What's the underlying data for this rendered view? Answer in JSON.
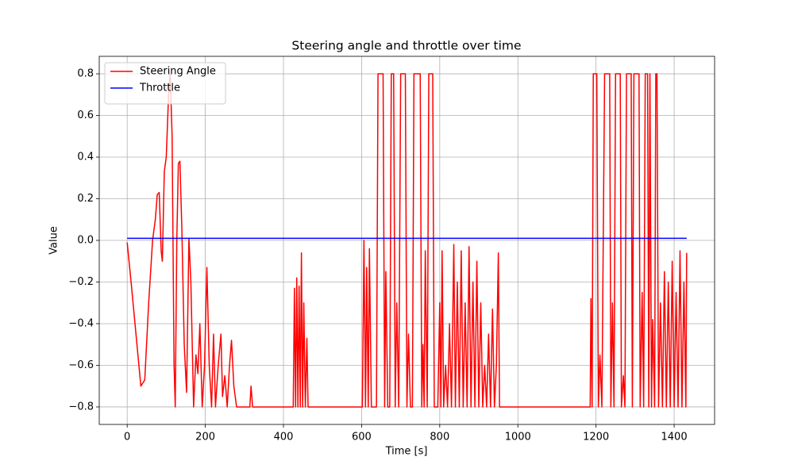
{
  "chart_data": {
    "type": "line",
    "title": "Steering angle and throttle over time",
    "xlabel": "Time [s]",
    "ylabel": "Value",
    "xlim": [
      -71.5,
      1503.5
    ],
    "ylim": [
      -0.884,
      0.884
    ],
    "xticks": [
      0,
      200,
      400,
      600,
      800,
      1000,
      1200,
      1400
    ],
    "yticks": [
      {
        "value": -0.8,
        "label": "−0.8"
      },
      {
        "value": -0.6,
        "label": "−0.6"
      },
      {
        "value": -0.4,
        "label": "−0.4"
      },
      {
        "value": -0.2,
        "label": "−0.2"
      },
      {
        "value": 0,
        "label": "0.0"
      },
      0.2,
      0.4,
      0.6,
      0.8
    ],
    "grid": true,
    "legend": "upper-left",
    "series": [
      {
        "name": "Steering Angle",
        "color": "#ff0000",
        "x": [
          0,
          10,
          20,
          30,
          35,
          45,
          55,
          65,
          72,
          77,
          82,
          87,
          90,
          95,
          100,
          106,
          110,
          115,
          120,
          123,
          127,
          131,
          135,
          140,
          146,
          152,
          158,
          163,
          170,
          176,
          181,
          186,
          192,
          198,
          204,
          210,
          216,
          221,
          226,
          233,
          240,
          244,
          250,
          256,
          262,
          267,
          273,
          280,
          314,
          317,
          321,
          425,
          428,
          431,
          434,
          437,
          440,
          443,
          446,
          449,
          452,
          456,
          460,
          463,
          602,
          606,
          610,
          613,
          617,
          620,
          625,
          638,
          642,
          655,
          659,
          662,
          667,
          672,
          676,
          682,
          686,
          690,
          695,
          700,
          712,
          716,
          720,
          725,
          730,
          734,
          750,
          754,
          757,
          760,
          763,
          768,
          772,
          782,
          786,
          795,
          800,
          803,
          806,
          810,
          815,
          820,
          825,
          830,
          836,
          840,
          845,
          850,
          855,
          860,
          865,
          870,
          875,
          880,
          885,
          890,
          895,
          900,
          905,
          910,
          915,
          920,
          925,
          930,
          935,
          940,
          945,
          950,
          953,
          1185,
          1187,
          1190,
          1193,
          1202,
          1206,
          1210,
          1215,
          1222,
          1235,
          1238,
          1242,
          1246,
          1250,
          1262,
          1265,
          1270,
          1274,
          1278,
          1290,
          1293,
          1297,
          1310,
          1313,
          1318,
          1322,
          1326,
          1332,
          1335,
          1338,
          1342,
          1345,
          1350,
          1353,
          1356,
          1360,
          1365,
          1370,
          1375,
          1380,
          1385,
          1390,
          1395,
          1400,
          1405,
          1410,
          1415,
          1420,
          1425,
          1430,
          1432
        ],
        "values": [
          -0.01,
          -0.2,
          -0.4,
          -0.6,
          -0.7,
          -0.67,
          -0.3,
          0,
          0.1,
          0.22,
          0.23,
          -0.05,
          -0.1,
          0.33,
          0.4,
          0.7,
          0.8,
          0.5,
          -0.6,
          -0.8,
          0,
          0.37,
          0.38,
          0.05,
          -0.5,
          -0.73,
          0.01,
          -0.2,
          -0.8,
          -0.55,
          -0.64,
          -0.4,
          -0.8,
          -0.6,
          -0.13,
          -0.6,
          -0.8,
          -0.45,
          -0.8,
          -0.6,
          -0.45,
          -0.75,
          -0.65,
          -0.8,
          -0.6,
          -0.48,
          -0.7,
          -0.8,
          -0.8,
          -0.7,
          -0.8,
          -0.8,
          -0.23,
          -0.8,
          -0.18,
          -0.8,
          -0.22,
          -0.8,
          -0.06,
          -0.8,
          -0.3,
          -0.8,
          -0.47,
          -0.8,
          -0.8,
          0,
          -0.8,
          -0.13,
          -0.8,
          -0.04,
          -0.8,
          -0.8,
          0.8,
          0.8,
          -0.8,
          -0.15,
          -0.8,
          -0.8,
          0.8,
          0.8,
          -0.8,
          -0.3,
          -0.8,
          0.8,
          0.8,
          -0.8,
          -0.45,
          -0.8,
          -0.8,
          0.8,
          0.8,
          -0.8,
          -0.5,
          -0.8,
          -0.05,
          -0.8,
          0.8,
          0.8,
          -0.8,
          -0.8,
          -0.3,
          -0.8,
          -0.05,
          -0.8,
          -0.6,
          -0.8,
          -0.4,
          -0.8,
          -0.02,
          -0.8,
          -0.2,
          -0.8,
          -0.05,
          -0.8,
          -0.3,
          -0.8,
          -0.03,
          -0.8,
          -0.2,
          -0.8,
          -0.1,
          -0.8,
          -0.3,
          -0.8,
          -0.6,
          -0.8,
          -0.45,
          -0.8,
          -0.33,
          -0.8,
          -0.6,
          -0.06,
          -0.8,
          -0.8,
          -0.28,
          -0.8,
          0.8,
          0.8,
          -0.8,
          -0.55,
          -0.8,
          0.8,
          0.8,
          -0.8,
          -0.3,
          -0.8,
          0.8,
          0.8,
          -0.8,
          -0.65,
          -0.8,
          0.8,
          0.8,
          -0.8,
          0.8,
          0.8,
          -0.8,
          -0.25,
          -0.8,
          0.8,
          0.8,
          -0.8,
          0.8,
          -0.8,
          -0.38,
          -0.8,
          0.8,
          0.8,
          -0.8,
          -0.3,
          -0.8,
          -0.15,
          -0.8,
          -0.2,
          -0.8,
          -0.1,
          -0.8,
          -0.25,
          -0.8,
          -0.05,
          -0.8,
          -0.2,
          -0.8,
          -0.06
        ]
      },
      {
        "name": "Throttle",
        "color": "#0000ff",
        "x": [
          0,
          1432
        ],
        "values": [
          0.01,
          0.01
        ]
      }
    ]
  }
}
